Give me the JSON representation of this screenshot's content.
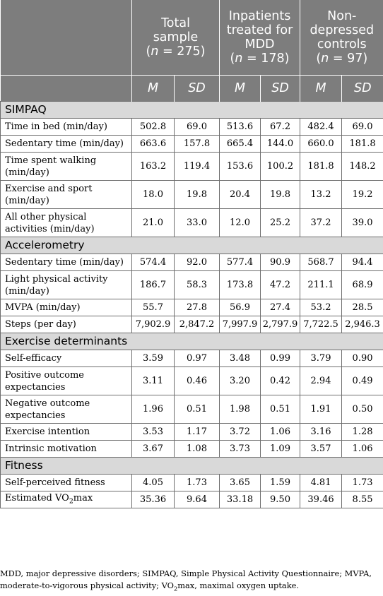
{
  "header": {
    "groups": [
      {
        "line1": "Total",
        "line2": "sample",
        "n_pre": "(",
        "n_label": "n",
        "n_post": " = 275)"
      },
      {
        "line1": "Inpatients",
        "line2": "treated for",
        "line3": "MDD",
        "n_pre": "(",
        "n_label": "n",
        "n_post": " = 178)"
      },
      {
        "line1": "Non-",
        "line2": "depressed",
        "line3": "controls",
        "n_pre": "(",
        "n_label": "n",
        "n_post": " = 97)"
      }
    ],
    "stat_m": "M",
    "stat_sd": "SD"
  },
  "sections": [
    {
      "title": "SIMPAQ",
      "rows": [
        {
          "label": "Time in bed (min/day)",
          "values": [
            "502.8",
            "69.0",
            "513.6",
            "67.2",
            "482.4",
            "69.0"
          ]
        },
        {
          "label": "Sedentary time (min/day)",
          "values": [
            "663.6",
            "157.8",
            "665.4",
            "144.0",
            "660.0",
            "181.8"
          ]
        },
        {
          "label": "Time spent walking (min/day)",
          "values": [
            "163.2",
            "119.4",
            "153.6",
            "100.2",
            "181.8",
            "148.2"
          ]
        },
        {
          "label": "Exercise and sport (min/day)",
          "values": [
            "18.0",
            "19.8",
            "20.4",
            "19.8",
            "13.2",
            "19.2"
          ]
        },
        {
          "label": "All other physical activities (min/day)",
          "values": [
            "21.0",
            "33.0",
            "12.0",
            "25.2",
            "37.2",
            "39.0"
          ]
        }
      ]
    },
    {
      "title": "Accelerometry",
      "rows": [
        {
          "label": "Sedentary time (min/day)",
          "values": [
            "574.4",
            "92.0",
            "577.4",
            "90.9",
            "568.7",
            "94.4"
          ]
        },
        {
          "label": "Light physical activity (min/day)",
          "values": [
            "186.7",
            "58.3",
            "173.8",
            "47.2",
            "211.1",
            "68.9"
          ]
        },
        {
          "label": "MVPA (min/day)",
          "values": [
            "55.7",
            "27.8",
            "56.9",
            "27.4",
            "53.2",
            "28.5"
          ]
        },
        {
          "label": "Steps (per day)",
          "values": [
            "7,902.9",
            "2,847.2",
            "7,997.9",
            "2,797.9",
            "7,722.5",
            "2,946.3"
          ]
        }
      ]
    },
    {
      "title": "Exercise determinants",
      "rows": [
        {
          "label": "Self-efficacy",
          "values": [
            "3.59",
            "0.97",
            "3.48",
            "0.99",
            "3.79",
            "0.90"
          ]
        },
        {
          "label": "Positive outcome expectancies",
          "values": [
            "3.11",
            "0.46",
            "3.20",
            "0.42",
            "2.94",
            "0.49"
          ]
        },
        {
          "label": "Negative outcome expectancies",
          "values": [
            "1.96",
            "0.51",
            "1.98",
            "0.51",
            "1.91",
            "0.50"
          ]
        },
        {
          "label": "Exercise intention",
          "values": [
            "3.53",
            "1.17",
            "3.72",
            "1.06",
            "3.16",
            "1.28"
          ]
        },
        {
          "label": "Intrinsic motivation",
          "values": [
            "3.67",
            "1.08",
            "3.73",
            "1.09",
            "3.57",
            "1.06"
          ]
        }
      ]
    },
    {
      "title": "Fitness",
      "rows": [
        {
          "label": "Self-perceived fitness",
          "values": [
            "4.05",
            "1.73",
            "3.65",
            "1.59",
            "4.81",
            "1.73"
          ]
        },
        {
          "label_pre": "Estimated VO",
          "label_sub": "2",
          "label_post": "max",
          "values": [
            "35.36",
            "9.64",
            "33.18",
            "9.50",
            "39.46",
            "8.55"
          ]
        }
      ]
    }
  ],
  "footnote": {
    "text_pre": "MDD, major depressive disorders; SIMPAQ, Simple Physical Activity Questionnaire; MVPA, moderate-to-vigorous physical activity; VO",
    "sub": "2",
    "text_post": "max, maximal oxygen uptake."
  }
}
